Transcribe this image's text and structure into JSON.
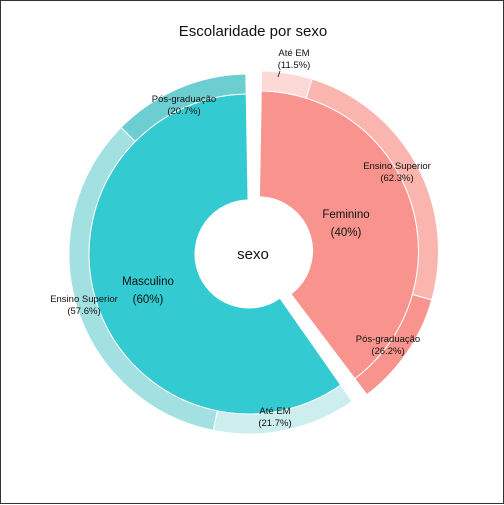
{
  "chart_data": {
    "type": "sunburst",
    "title": "Escolaridade por sexo",
    "center_label": "sexo",
    "inner": [
      {
        "name": "Feminino",
        "percent_label": "(40%)",
        "value": 40,
        "color": "#F8938D"
      },
      {
        "name": "Masculino",
        "percent_label": "(60%)",
        "value": 60,
        "color": "#33CBD1"
      }
    ],
    "outer": [
      {
        "parent": "Feminino",
        "name": "Até EM",
        "percent_label": "(11.5%)",
        "value": 11.5,
        "color": "#FDD9D6"
      },
      {
        "parent": "Feminino",
        "name": "Ensino Superior",
        "percent_label": "(62.3%)",
        "value": 62.3,
        "color": "#FBB5AF"
      },
      {
        "parent": "Feminino",
        "name": "Pós-graduação",
        "percent_label": "(26.2%)",
        "value": 26.2,
        "color": "#F8938D"
      },
      {
        "parent": "Masculino",
        "name": "Até EM",
        "percent_label": "(21.7%)",
        "value": 21.7,
        "color": "#CCEEEF"
      },
      {
        "parent": "Masculino",
        "name": "Ensino Superior",
        "percent_label": "(57.6%)",
        "value": 57.6,
        "color": "#A3E0E2"
      },
      {
        "parent": "Masculino",
        "name": "Pós-graduação",
        "percent_label": "(20.7%)",
        "value": 20.7,
        "color": "#6DCED2"
      }
    ]
  }
}
